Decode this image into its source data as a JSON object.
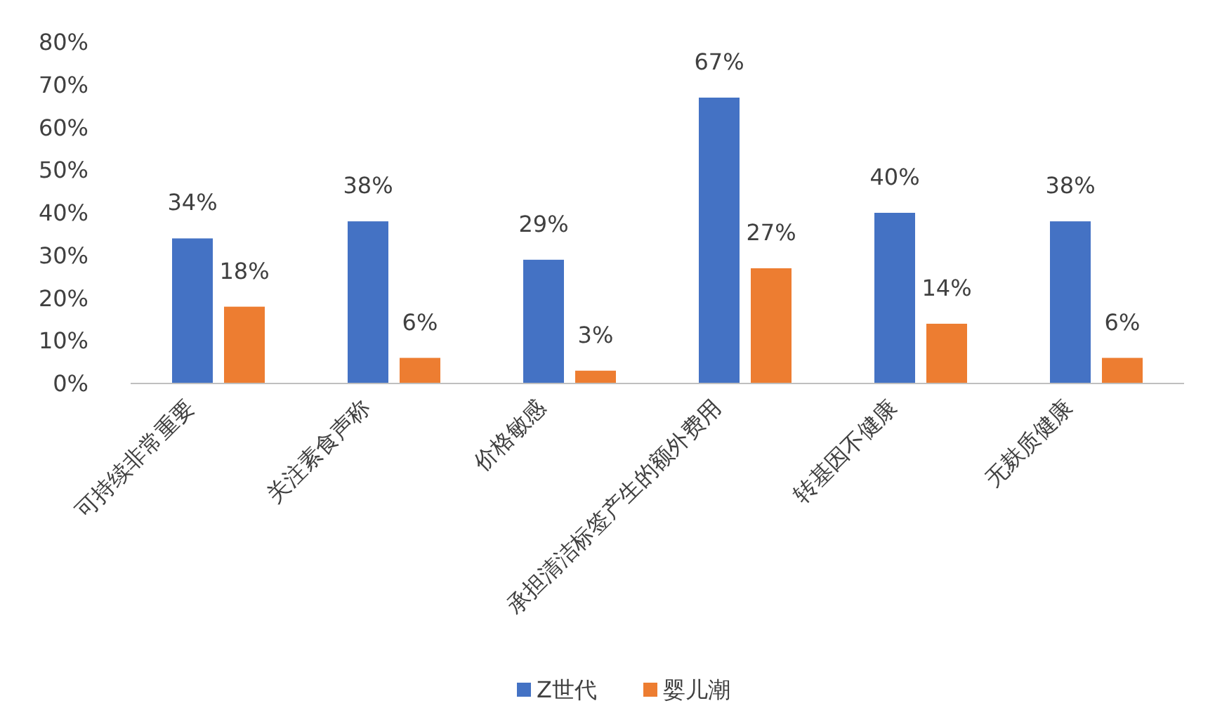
{
  "chart_data": {
    "type": "bar",
    "categories": [
      "可持续非常重要",
      "关注素食声称",
      "价格敏感",
      "承担清洁标签产生的额外费用",
      "转基因不健康",
      "无麸质健康"
    ],
    "series": [
      {
        "name": "Z世代",
        "color": "#4472c4",
        "values": [
          34,
          38,
          29,
          67,
          40,
          38
        ],
        "value_labels": [
          "34%",
          "38%",
          "29%",
          "67%",
          "40%",
          "38%"
        ]
      },
      {
        "name": "婴儿潮",
        "color": "#ed7d31",
        "values": [
          18,
          6,
          3,
          27,
          14,
          6
        ],
        "value_labels": [
          "18%",
          "6%",
          "3%",
          "27%",
          "14%",
          "6%"
        ]
      }
    ],
    "ylim": [
      0,
      80
    ],
    "yticks": [
      {
        "value": 0,
        "label": "0%"
      },
      {
        "value": 10,
        "label": "10%"
      },
      {
        "value": 20,
        "label": "20%"
      },
      {
        "value": 30,
        "label": "30%"
      },
      {
        "value": 40,
        "label": "40%"
      },
      {
        "value": 50,
        "label": "50%"
      },
      {
        "value": 60,
        "label": "60%"
      },
      {
        "value": 70,
        "label": "70%"
      },
      {
        "value": 80,
        "label": "80%"
      }
    ],
    "grid": false,
    "legend": "bottom"
  }
}
